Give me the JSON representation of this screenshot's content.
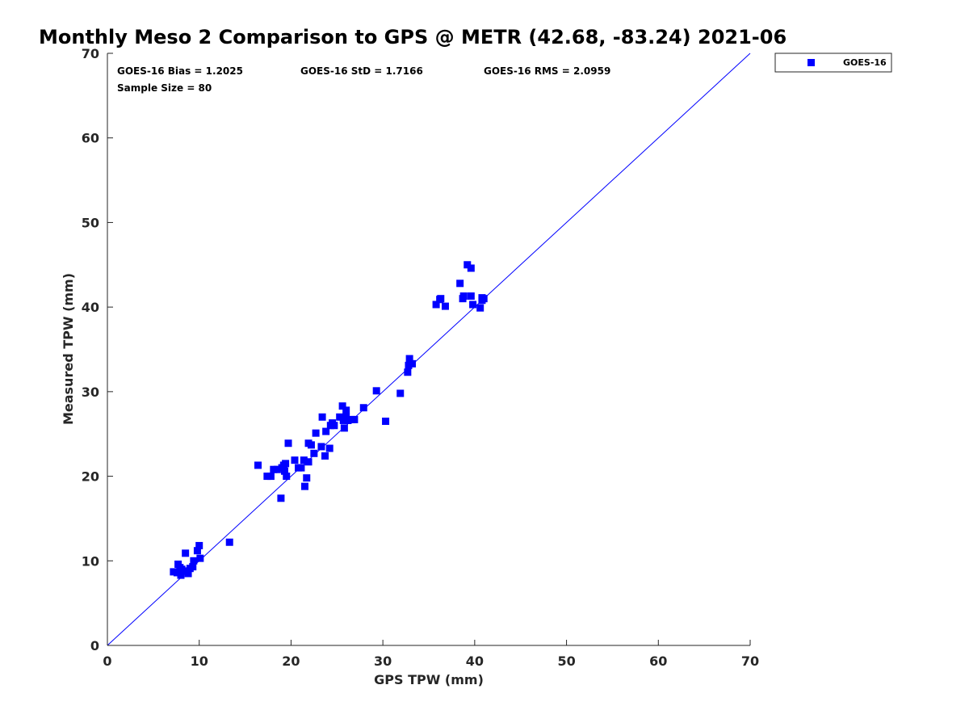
{
  "chart_data": {
    "type": "scatter",
    "title": "Monthly Meso 2 Comparison to GPS @ METR (42.68, -83.24) 2021-06",
    "xlabel": "GPS TPW (mm)",
    "ylabel": "Measured TPW (mm)",
    "xlim": [
      0,
      70
    ],
    "ylim": [
      0,
      70
    ],
    "xticks": [
      "0",
      "10",
      "20",
      "30",
      "40",
      "50",
      "60",
      "70"
    ],
    "yticks": [
      "0",
      "10",
      "20",
      "30",
      "40",
      "50",
      "60",
      "70"
    ],
    "grid": false,
    "legend_position": "top-right",
    "reference_line": {
      "x": [
        0,
        70
      ],
      "y": [
        0,
        70
      ]
    },
    "stats": {
      "bias": "GOES-16 Bias = 1.2025",
      "std": "GOES-16 StD = 1.7166",
      "rms": "GOES-16 RMS = 2.0959",
      "sample_size": "Sample Size = 80"
    },
    "series": [
      {
        "name": "GOES-16",
        "color": "#0000ff",
        "marker": "square",
        "points": [
          [
            7.2,
            8.7
          ],
          [
            7.6,
            8.6
          ],
          [
            7.7,
            9.6
          ],
          [
            7.9,
            9.2
          ],
          [
            8.0,
            8.3
          ],
          [
            8.1,
            9.0
          ],
          [
            8.3,
            8.8
          ],
          [
            8.5,
            10.9
          ],
          [
            8.8,
            8.5
          ],
          [
            9.0,
            9.1
          ],
          [
            9.3,
            9.3
          ],
          [
            9.4,
            10.0
          ],
          [
            9.8,
            11.2
          ],
          [
            10.0,
            11.8
          ],
          [
            10.1,
            10.3
          ],
          [
            13.3,
            12.2
          ],
          [
            16.4,
            21.3
          ],
          [
            17.4,
            20.0
          ],
          [
            17.8,
            20.0
          ],
          [
            18.1,
            20.8
          ],
          [
            18.5,
            20.8
          ],
          [
            18.9,
            17.4
          ],
          [
            19.0,
            21.0
          ],
          [
            19.2,
            21.3
          ],
          [
            19.3,
            20.6
          ],
          [
            19.4,
            21.5
          ],
          [
            19.5,
            20.0
          ],
          [
            19.7,
            23.9
          ],
          [
            20.4,
            21.9
          ],
          [
            20.8,
            21.0
          ],
          [
            21.1,
            21.0
          ],
          [
            21.4,
            21.9
          ],
          [
            21.5,
            18.8
          ],
          [
            21.7,
            19.8
          ],
          [
            21.9,
            21.7
          ],
          [
            21.9,
            23.9
          ],
          [
            22.2,
            23.7
          ],
          [
            22.5,
            22.7
          ],
          [
            22.7,
            25.1
          ],
          [
            23.3,
            23.5
          ],
          [
            23.4,
            27.0
          ],
          [
            23.7,
            22.4
          ],
          [
            23.8,
            25.3
          ],
          [
            24.2,
            23.3
          ],
          [
            24.3,
            26.0
          ],
          [
            24.5,
            26.3
          ],
          [
            24.7,
            26.0
          ],
          [
            25.3,
            27.0
          ],
          [
            25.6,
            28.3
          ],
          [
            25.7,
            26.6
          ],
          [
            25.8,
            26.8
          ],
          [
            25.8,
            25.7
          ],
          [
            26.0,
            27.8
          ],
          [
            26.0,
            27.0
          ],
          [
            26.2,
            26.6
          ],
          [
            26.6,
            26.7
          ],
          [
            26.9,
            26.7
          ],
          [
            27.9,
            28.1
          ],
          [
            29.3,
            30.1
          ],
          [
            31.9,
            29.8
          ],
          [
            30.3,
            26.5
          ],
          [
            32.7,
            32.3
          ],
          [
            32.8,
            33.1
          ],
          [
            32.9,
            33.9
          ],
          [
            33.2,
            33.3
          ],
          [
            35.8,
            40.3
          ],
          [
            36.3,
            41.0
          ],
          [
            36.8,
            40.1
          ],
          [
            38.4,
            42.8
          ],
          [
            38.7,
            41.0
          ],
          [
            38.8,
            41.3
          ],
          [
            39.2,
            45.0
          ],
          [
            39.6,
            44.6
          ],
          [
            39.6,
            41.3
          ],
          [
            39.8,
            40.3
          ],
          [
            40.8,
            40.8
          ],
          [
            41.0,
            41.0
          ],
          [
            40.6,
            39.9
          ],
          [
            40.8,
            41.1
          ],
          [
            36.2,
            40.9
          ]
        ]
      }
    ]
  }
}
